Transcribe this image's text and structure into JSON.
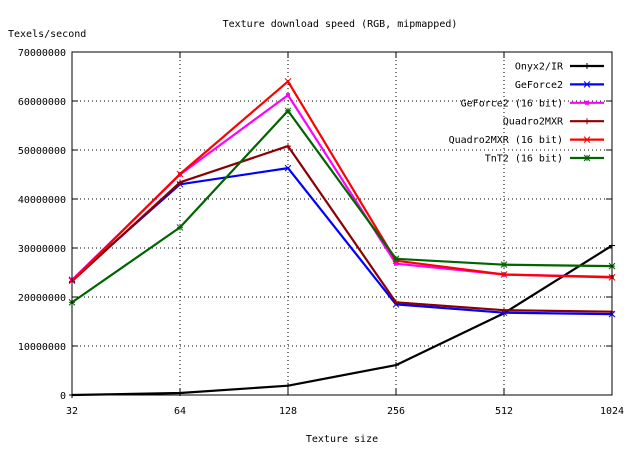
{
  "chart_data": {
    "type": "line",
    "title": "Texture download speed (RGB, mipmapped)",
    "xlabel": "Texture size",
    "ylabel": "Texels/second",
    "x": [
      32,
      64,
      128,
      256,
      512,
      1024
    ],
    "x_tick_labels": [
      "32",
      "64",
      "128",
      "256",
      "512",
      "1024"
    ],
    "x_scale": "log2",
    "ylim": [
      0,
      70000000
    ],
    "y_ticks": [
      0,
      10000000,
      20000000,
      30000000,
      40000000,
      50000000,
      60000000,
      70000000
    ],
    "y_tick_labels": [
      "0",
      "10000000",
      "20000000",
      "30000000",
      "40000000",
      "50000000",
      "60000000",
      "70000000"
    ],
    "grid": true,
    "legend_position": "top-right",
    "series": [
      {
        "name": "Onyx2/IR",
        "color": "#000000",
        "values": [
          0,
          400000,
          1900000,
          6100000,
          16700000,
          30500000
        ]
      },
      {
        "name": "GeForce2",
        "color": "#0000ff",
        "values": [
          23500000,
          43000000,
          46300000,
          18500000,
          16800000,
          16500000
        ]
      },
      {
        "name": "GeForce2 (16 bit)",
        "color": "#ff00ff",
        "values": [
          23500000,
          45000000,
          61200000,
          26800000,
          24600000,
          24100000
        ]
      },
      {
        "name": "Quadro2MXR",
        "color": "#8b0000",
        "values": [
          23200000,
          43400000,
          50800000,
          18900000,
          17300000,
          17000000
        ]
      },
      {
        "name": "Quadro2MXR (16 bit)",
        "color": "#ff0000",
        "values": [
          23300000,
          45100000,
          64000000,
          27400000,
          24600000,
          24000000
        ]
      },
      {
        "name": "TnT2 (16 bit)",
        "color": "#006400",
        "values": [
          18900000,
          34200000,
          58000000,
          27800000,
          26600000,
          26300000
        ]
      }
    ]
  }
}
